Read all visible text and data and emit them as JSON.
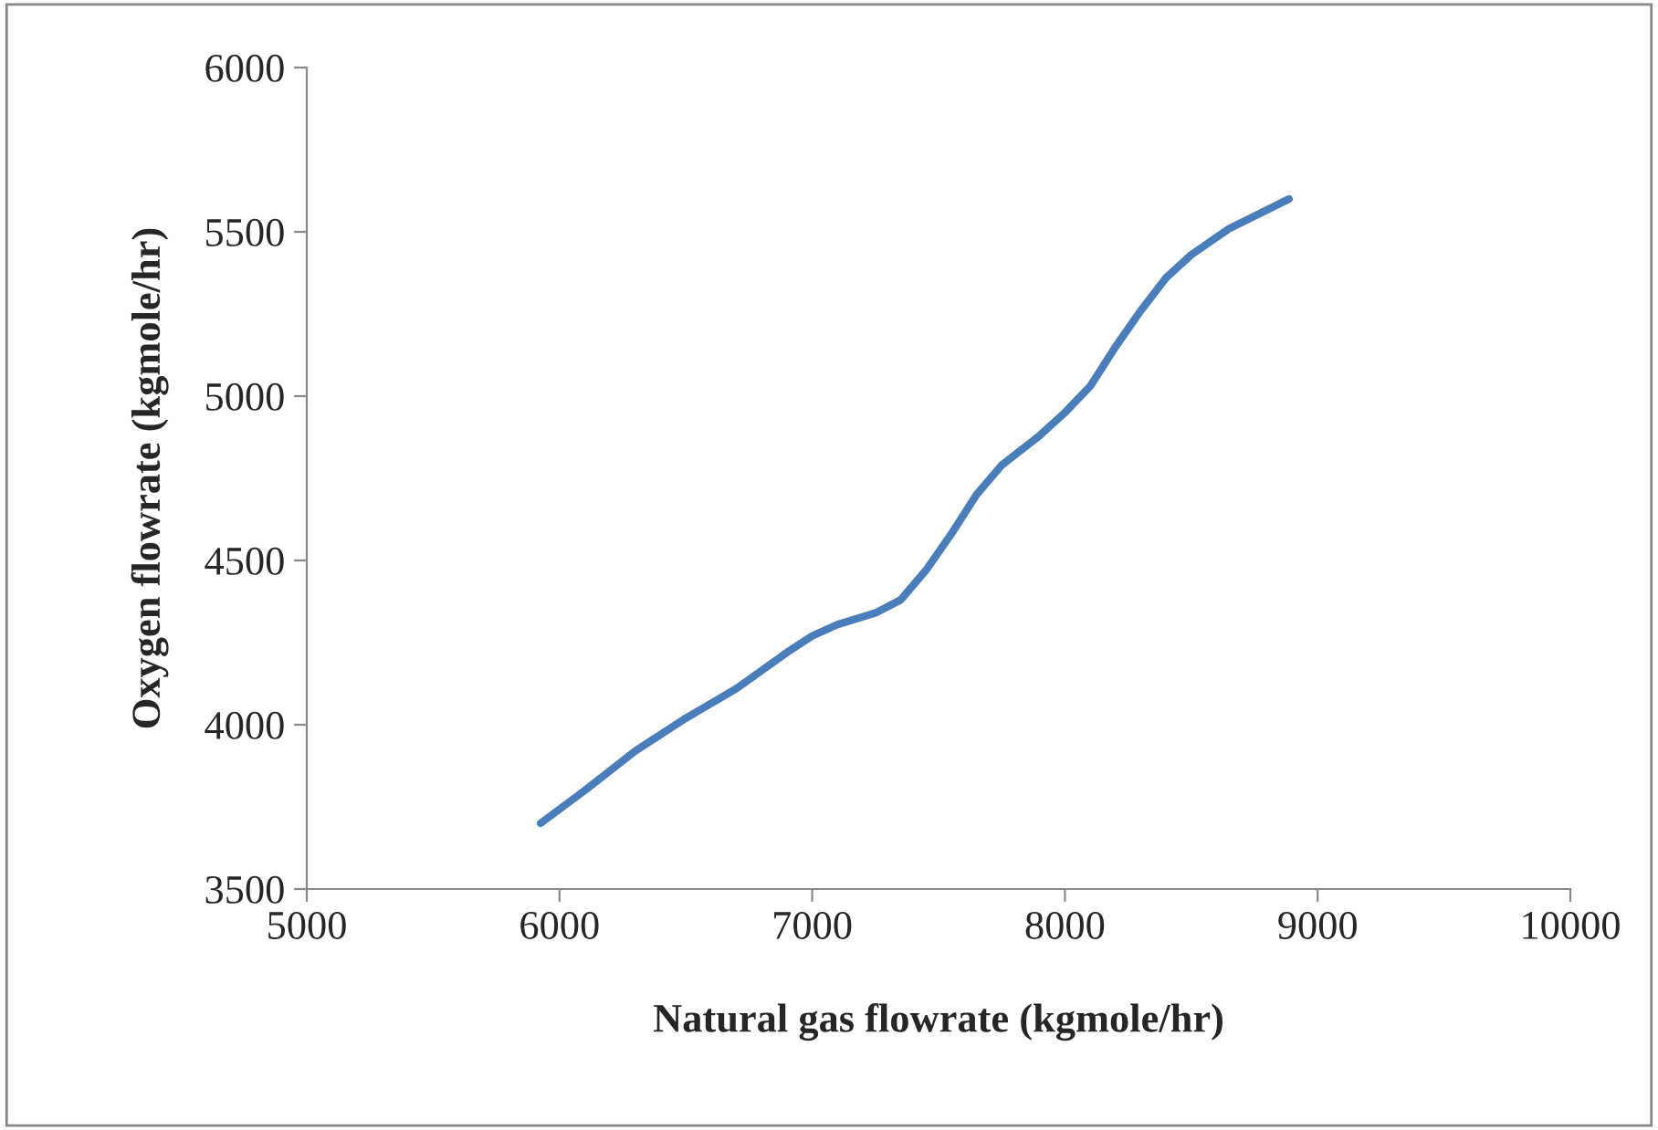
{
  "chart_data": {
    "type": "line",
    "xlabel": "Natural gas flowrate (kgmole/hr)",
    "ylabel": "Oxygen flowrate (kgmole/hr)",
    "x": [
      5925,
      6100,
      6300,
      6500,
      6700,
      6900,
      7000,
      7100,
      7250,
      7350,
      7450,
      7550,
      7650,
      7750,
      7900,
      8000,
      8100,
      8200,
      8300,
      8400,
      8500,
      8650,
      8887
    ],
    "series": [
      {
        "color": "#4a7ebb",
        "values": [
          3700,
          3800,
          3920,
          4020,
          4110,
          4220,
          4270,
          4305,
          4340,
          4380,
          4470,
          4580,
          4700,
          4790,
          4880,
          4950,
          5030,
          5150,
          5260,
          5360,
          5430,
          5510,
          5600
        ]
      }
    ],
    "xlim": [
      5000,
      10000
    ],
    "xticks": [
      5000,
      6000,
      7000,
      8000,
      9000,
      10000
    ],
    "ylim": [
      3500,
      6000
    ],
    "yticks": [
      3500,
      4000,
      4500,
      5000,
      5500,
      6000
    ],
    "grid": false,
    "legend": false,
    "marker": "none",
    "line_style": "solid"
  }
}
